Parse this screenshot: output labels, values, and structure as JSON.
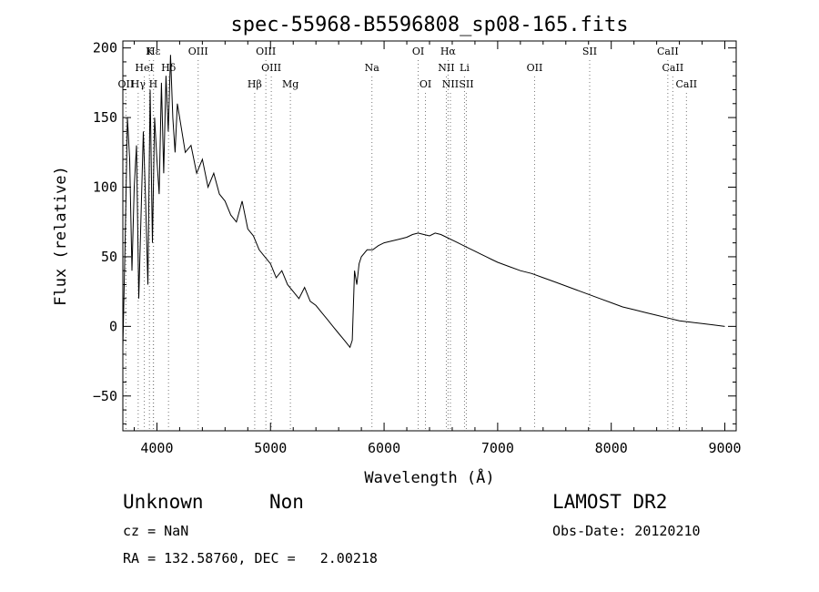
{
  "chart_data": {
    "type": "line",
    "title": "spec-55968-B5596808_sp08-165.fits",
    "xlabel": "Wavelength (Å)",
    "ylabel": "Flux (relative)",
    "xlim": [
      3700,
      9100
    ],
    "ylim": [
      -75,
      205
    ],
    "xticks": [
      4000,
      5000,
      6000,
      7000,
      8000,
      9000
    ],
    "yticks": [
      -50,
      0,
      50,
      100,
      150,
      200
    ],
    "grid": false,
    "color": "#000000",
    "series": [
      {
        "values_note": "",
        "x": [
          3700,
          3720,
          3740,
          3760,
          3780,
          3800,
          3820,
          3840,
          3860,
          3880,
          3900,
          3920,
          3940,
          3960,
          3980,
          4000,
          4020,
          4040,
          4060,
          4080,
          4100,
          4120,
          4140,
          4160,
          4180,
          4200,
          4250,
          4300,
          4350,
          4400,
          4450,
          4500,
          4550,
          4600,
          4650,
          4700,
          4750,
          4800,
          4850,
          4900,
          4950,
          5000,
          5050,
          5100,
          5150,
          5200,
          5250,
          5300,
          5350,
          5400,
          5450,
          5500,
          5550,
          5600,
          5650,
          5700,
          5720,
          5740,
          5760,
          5780,
          5800,
          5850,
          5900,
          5950,
          6000,
          6050,
          6100,
          6150,
          6200,
          6250,
          6300,
          6350,
          6400,
          6450,
          6500,
          6550,
          6600,
          6650,
          6700,
          6750,
          6800,
          6850,
          6900,
          6950,
          7000,
          7100,
          7200,
          7300,
          7400,
          7500,
          7600,
          7700,
          7800,
          7900,
          8000,
          8100,
          8200,
          8300,
          8400,
          8500,
          8600,
          8700,
          8800,
          8900,
          9000
        ],
        "y": [
          -15,
          60,
          150,
          120,
          40,
          100,
          130,
          20,
          80,
          140,
          90,
          30,
          170,
          60,
          150,
          120,
          95,
          175,
          110,
          180,
          140,
          195,
          150,
          125,
          160,
          150,
          125,
          130,
          110,
          120,
          100,
          110,
          95,
          90,
          80,
          75,
          90,
          70,
          65,
          55,
          50,
          45,
          35,
          40,
          30,
          25,
          20,
          28,
          18,
          15,
          10,
          5,
          0,
          -5,
          -10,
          -15,
          -10,
          40,
          30,
          45,
          50,
          55,
          55,
          58,
          60,
          61,
          62,
          63,
          64,
          66,
          67,
          66,
          65,
          67,
          66,
          64,
          62,
          60,
          58,
          56,
          54,
          52,
          50,
          48,
          46,
          43,
          40,
          38,
          35,
          32,
          29,
          26,
          23,
          20,
          17,
          14,
          12,
          10,
          8,
          6,
          4,
          3,
          2,
          1,
          0
        ]
      }
    ],
    "lines": [
      {
        "label": "Hε",
        "x": 3970,
        "row": 0
      },
      {
        "label": "K",
        "x": 3934,
        "row": 0
      },
      {
        "label": "HeI",
        "x": 3889,
        "row": 1
      },
      {
        "label": "Hδ",
        "x": 4102,
        "row": 1
      },
      {
        "label": "OII",
        "x": 3727,
        "row": 2
      },
      {
        "label": "Hγ",
        "x": 3835,
        "row": 2
      },
      {
        "label": "H",
        "x": 3968,
        "row": 2
      },
      {
        "label": "OIII",
        "x": 4363,
        "row": 0
      },
      {
        "label": "OIII",
        "x": 4959,
        "row": 0
      },
      {
        "label": "OIII",
        "x": 5007,
        "row": 1
      },
      {
        "label": "Hβ",
        "x": 4861,
        "row": 2
      },
      {
        "label": "Mg",
        "x": 5175,
        "row": 2
      },
      {
        "label": "Na",
        "x": 5893,
        "row": 1
      },
      {
        "label": "OI",
        "x": 6300,
        "row": 0
      },
      {
        "label": "OI",
        "x": 6364,
        "row": 2
      },
      {
        "label": "Hα",
        "x": 6563,
        "row": 0
      },
      {
        "label": "NII",
        "x": 6548,
        "row": 1
      },
      {
        "label": "NII",
        "x": 6584,
        "row": 2
      },
      {
        "label": "Li",
        "x": 6708,
        "row": 1
      },
      {
        "label": "SII",
        "x": 6724,
        "row": 2
      },
      {
        "label": "OII",
        "x": 7325,
        "row": 1
      },
      {
        "label": "SII",
        "x": 7810,
        "row": 0
      },
      {
        "label": "CaII",
        "x": 8498,
        "row": 0
      },
      {
        "label": "CaII",
        "x": 8542,
        "row": 1
      },
      {
        "label": "CaII",
        "x": 8662,
        "row": 2
      }
    ]
  },
  "footer": {
    "class_label": "Unknown",
    "subclass_label": "Non",
    "survey": "LAMOST DR2",
    "cz": "cz = NaN",
    "obs_date": "Obs-Date: 20120210",
    "coords": "RA = 132.58760, DEC =   2.00218"
  }
}
